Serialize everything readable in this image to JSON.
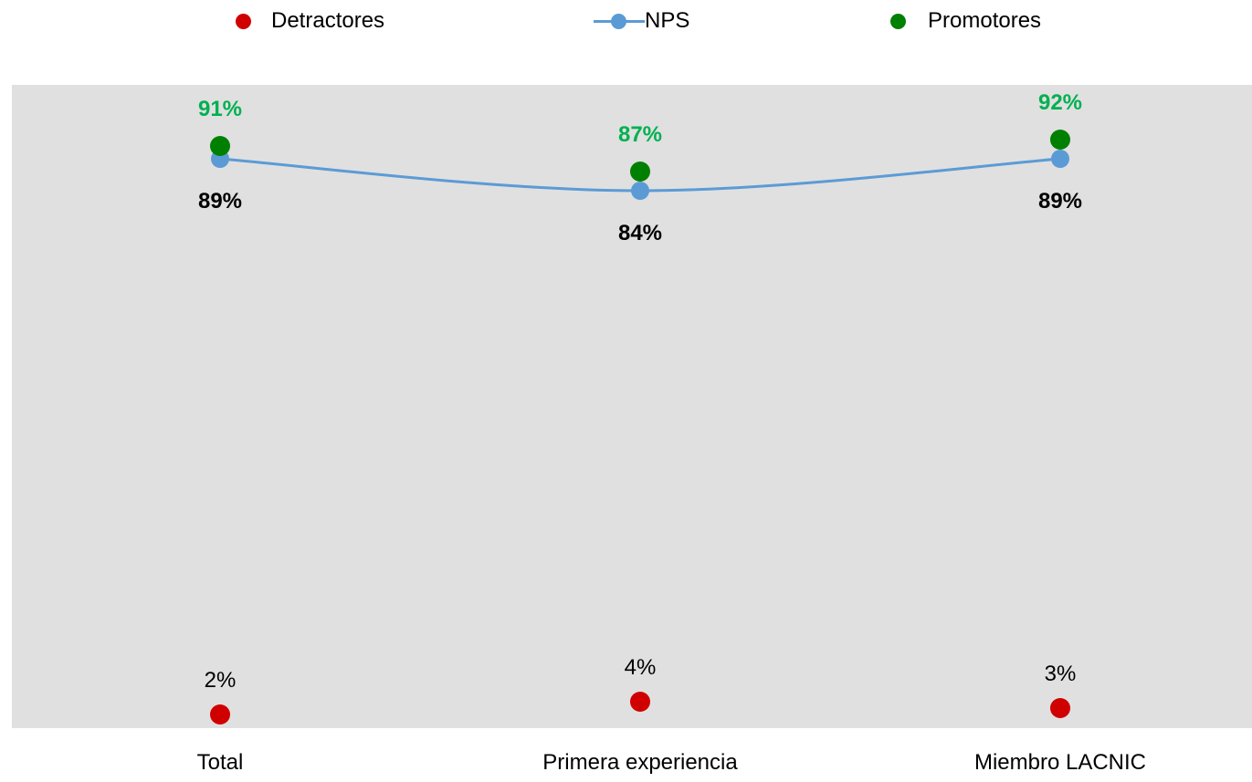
{
  "chart_data": {
    "type": "line",
    "categories": [
      "Total",
      "Primera experiencia",
      "Miembro LACNIC"
    ],
    "ylim": [
      0,
      100
    ],
    "series": [
      {
        "name": "Detractores",
        "type": "scatter",
        "values": [
          2,
          4,
          3
        ],
        "labels": [
          "2%",
          "4%",
          "3%"
        ],
        "color": "#D00000"
      },
      {
        "name": "NPS",
        "type": "line",
        "values": [
          89,
          84,
          89
        ],
        "labels": [
          "89%",
          "84%",
          "89%"
        ],
        "color": "#5B9BD5"
      },
      {
        "name": "Promotores",
        "type": "scatter",
        "values": [
          91,
          87,
          92
        ],
        "labels": [
          "91%",
          "87%",
          "92%"
        ],
        "color": "#008000",
        "label_color": "#00B050"
      }
    ],
    "plot_background": "#E0E0E0",
    "legend_position": "top"
  }
}
